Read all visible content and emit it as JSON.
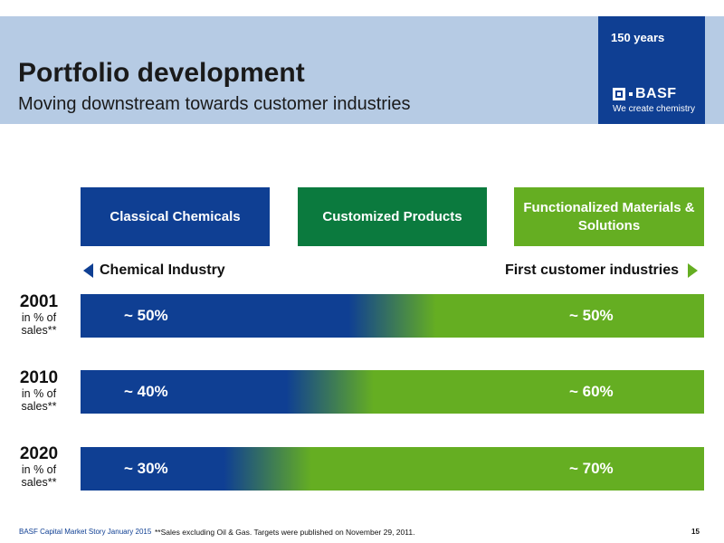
{
  "header": {
    "title": "Portfolio development",
    "subtitle": "Moving downstream towards customer industries",
    "badge_years": "150 years",
    "logo_text": "BASF",
    "tagline": "We create chemistry",
    "header_color": "#b6cbe4",
    "badge_color": "#0f3f93"
  },
  "categories": [
    {
      "label": "Classical Chemicals",
      "color": "#0f3f93"
    },
    {
      "label": "Customized Products",
      "color": "#0b7a3e"
    },
    {
      "label": "Functionalized Materials & Solutions",
      "color": "#65ae22"
    }
  ],
  "scale": {
    "left_label": "Chemical Industry",
    "right_label": "First customer industries"
  },
  "rows": [
    {
      "year": "2001",
      "unit": "in % of sales**",
      "left_text": "~ 50%",
      "right_text": "~ 50%",
      "left_share": 50
    },
    {
      "year": "2010",
      "unit": "in % of sales**",
      "left_text": "~ 40%",
      "right_text": "~ 60%",
      "left_share": 40
    },
    {
      "year": "2020",
      "unit": "in % of sales**",
      "left_text": "~ 30%",
      "right_text": "~ 70%",
      "left_share": 30
    }
  ],
  "colors": {
    "blue": "#0f3f93",
    "green": "#65ae22"
  },
  "footer": {
    "left": "BASF Capital Market Story January 2015",
    "note": "**Sales excluding Oil & Gas. Targets were published on November 29, 2011.",
    "page": "15"
  }
}
